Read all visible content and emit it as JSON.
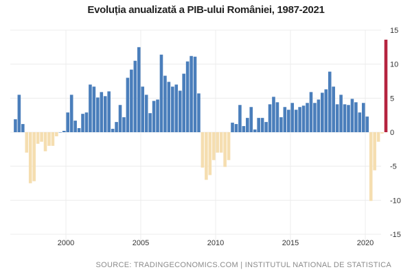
{
  "chart_data": {
    "type": "bar",
    "title": "Evoluția anualizată a PIB-ului României, 1987-2021",
    "source": "SOURCE: TRADINGECONOMICS.COM | INSTITUTUL NATIONAL DE STATISTICA",
    "xlabel": "",
    "ylabel": "",
    "ylim": [
      -15,
      15
    ],
    "yticks": [
      "15",
      "10",
      "5",
      "0",
      "-5",
      "-10",
      "-15"
    ],
    "xticks": [
      "2000",
      "2005",
      "2010",
      "2015",
      "2020"
    ],
    "grid": true,
    "y_axis_side": "right",
    "frequency": "quarterly",
    "categories": [
      "1996Q3",
      "1996Q4",
      "1997Q1",
      "1997Q2",
      "1997Q3",
      "1997Q4",
      "1998Q1",
      "1998Q2",
      "1998Q3",
      "1998Q4",
      "1999Q1",
      "1999Q2",
      "1999Q3",
      "1999Q4",
      "2000Q1",
      "2000Q2",
      "2000Q3",
      "2000Q4",
      "2001Q1",
      "2001Q2",
      "2001Q3",
      "2001Q4",
      "2002Q1",
      "2002Q2",
      "2002Q3",
      "2002Q4",
      "2003Q1",
      "2003Q2",
      "2003Q3",
      "2003Q4",
      "2004Q1",
      "2004Q2",
      "2004Q3",
      "2004Q4",
      "2005Q1",
      "2005Q2",
      "2005Q3",
      "2005Q4",
      "2006Q1",
      "2006Q2",
      "2006Q3",
      "2006Q4",
      "2007Q1",
      "2007Q2",
      "2007Q3",
      "2007Q4",
      "2008Q1",
      "2008Q2",
      "2008Q3",
      "2008Q4",
      "2009Q1",
      "2009Q2",
      "2009Q3",
      "2009Q4",
      "2010Q1",
      "2010Q2",
      "2010Q3",
      "2010Q4",
      "2011Q1",
      "2011Q2",
      "2011Q3",
      "2011Q4",
      "2012Q1",
      "2012Q2",
      "2012Q3",
      "2012Q4",
      "2013Q1",
      "2013Q2",
      "2013Q3",
      "2013Q4",
      "2014Q1",
      "2014Q2",
      "2014Q3",
      "2014Q4",
      "2015Q1",
      "2015Q2",
      "2015Q3",
      "2015Q4",
      "2016Q1",
      "2016Q2",
      "2016Q3",
      "2016Q4",
      "2017Q1",
      "2017Q2",
      "2017Q3",
      "2017Q4",
      "2018Q1",
      "2018Q2",
      "2018Q3",
      "2018Q4",
      "2019Q1",
      "2019Q2",
      "2019Q3",
      "2019Q4",
      "2020Q1",
      "2020Q2",
      "2020Q3",
      "2020Q4",
      "2021Q1",
      "2021Q2"
    ],
    "values": [
      1.9,
      5.5,
      1.2,
      -3.0,
      -7.5,
      -7.2,
      -1.7,
      -1.4,
      -2.8,
      -2.0,
      -2.0,
      -0.6,
      0,
      0.2,
      2.9,
      5.5,
      1.7,
      0.6,
      2.7,
      2.9,
      7.0,
      6.7,
      5.1,
      5.9,
      5.3,
      6.0,
      0.5,
      1.5,
      4.0,
      2.2,
      8.0,
      9.2,
      10.5,
      12.5,
      6.7,
      5.5,
      2.8,
      4.6,
      4.8,
      11.4,
      8.3,
      7.4,
      6.7,
      7.0,
      6.1,
      8.6,
      10.4,
      11.2,
      11.1,
      5.7,
      -5.2,
      -7.0,
      -6.3,
      -4.1,
      -3.0,
      -3.0,
      -5.1,
      -4.1,
      1.4,
      1.2,
      4.0,
      0.9,
      2.1,
      3.7,
      0.4,
      2.1,
      2.1,
      1.5,
      4.1,
      5.2,
      4.4,
      2.2,
      3.7,
      3.3,
      4.3,
      3.3,
      3.7,
      3.9,
      4.3,
      5.9,
      4.3,
      4.8,
      5.8,
      6.3,
      8.9,
      6.7,
      4.1,
      5.5,
      4.1,
      4.0,
      4.9,
      4.4,
      2.9,
      4.3,
      2.3,
      -10.1,
      -5.6,
      -1.4,
      -0.2,
      13.6
    ],
    "colors": {
      "positive": "#4a7ebb",
      "negative": "#f5deb0",
      "latest": "#b5243f",
      "grid": "#ececec"
    }
  }
}
